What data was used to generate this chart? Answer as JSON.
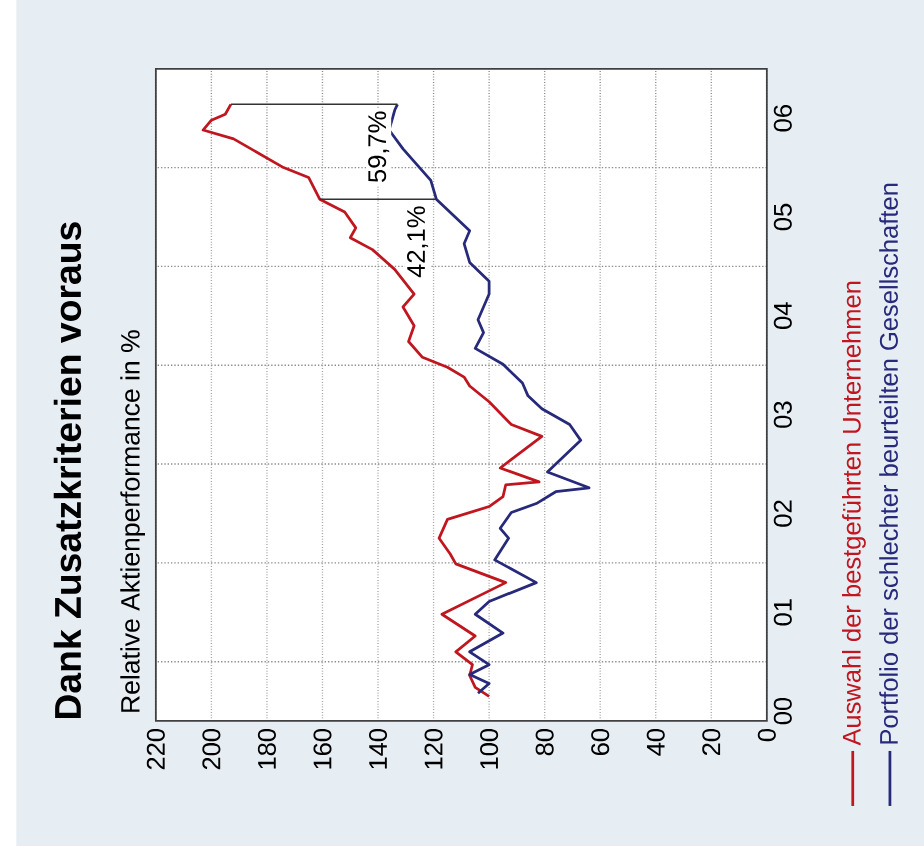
{
  "chart_data": {
    "type": "line",
    "title": "Dank Zusatzkriterien voraus",
    "subtitle": "Relative Aktienperformance in %",
    "xlim": [
      220,
      0
    ],
    "ylim": [
      -0.1,
      6.5
    ],
    "xticks": [
      0,
      20,
      40,
      60,
      80,
      100,
      120,
      140,
      160,
      180,
      200,
      220
    ],
    "yticks": [
      {
        "value": 0,
        "label": "00"
      },
      {
        "value": 1,
        "label": "01"
      },
      {
        "value": 2,
        "label": "02"
      },
      {
        "value": 3,
        "label": "03"
      },
      {
        "value": 4,
        "label": "04"
      },
      {
        "value": 5,
        "label": "05"
      },
      {
        "value": 6,
        "label": "06"
      },
      {
        "value": 0.5,
        "label": null
      },
      {
        "value": 1.5,
        "label": null
      },
      {
        "value": 2.5,
        "label": null
      },
      {
        "value": 3.5,
        "label": null
      },
      {
        "value": 4.5,
        "label": null
      },
      {
        "value": 5.5,
        "label": null
      }
    ],
    "grid": true,
    "legend": "right",
    "series": [
      {
        "name": "Auswahl der bestgeführten Unternehmen",
        "color": "#c0161f",
        "x": [
          100,
          105,
          107,
          106,
          112,
          105,
          117,
          94,
          112,
          114,
          118,
          115,
          100,
          95,
          94,
          82,
          96,
          81,
          92,
          100,
          107,
          109,
          115,
          124,
          129,
          127,
          131,
          127,
          134,
          142,
          150,
          148,
          152,
          161,
          165,
          174,
          192,
          203,
          200,
          195,
          193
        ],
        "values": [
          0.15,
          0.24,
          0.36,
          0.47,
          0.6,
          0.76,
          0.98,
          1.3,
          1.49,
          1.59,
          1.75,
          1.94,
          2.07,
          2.17,
          2.29,
          2.32,
          2.46,
          2.78,
          2.9,
          3.13,
          3.29,
          3.38,
          3.48,
          3.58,
          3.74,
          3.9,
          4.09,
          4.22,
          4.47,
          4.67,
          4.79,
          4.89,
          5.05,
          5.18,
          5.4,
          5.5,
          5.79,
          5.88,
          5.98,
          6.04,
          6.14
        ]
      },
      {
        "name": "Portfolio der schlechter beurteilten Gesellschaften",
        "color": "#27297a",
        "x": [
          104,
          100,
          107,
          100,
          107,
          95,
          105,
          100,
          83,
          98,
          93,
          96,
          92,
          83,
          76,
          64,
          79,
          67,
          71,
          81,
          86,
          88,
          95,
          105,
          102,
          104,
          100,
          100,
          107,
          109,
          107,
          113,
          119,
          121,
          131,
          136,
          134,
          133
        ],
        "values": [
          0.18,
          0.28,
          0.37,
          0.47,
          0.6,
          0.79,
          0.98,
          1.11,
          1.3,
          1.53,
          1.75,
          1.85,
          2.01,
          2.1,
          2.22,
          2.26,
          2.42,
          2.74,
          2.9,
          3.06,
          3.19,
          3.32,
          3.51,
          3.67,
          3.83,
          3.96,
          4.22,
          4.35,
          4.54,
          4.73,
          4.86,
          5.02,
          5.18,
          5.37,
          5.69,
          5.88,
          6.08,
          6.14
        ]
      }
    ],
    "annotations": [
      {
        "text": "59,7%",
        "x": 133,
        "y": 6.14
      },
      {
        "text": "42,1%",
        "x": 119,
        "y": 5.18
      }
    ]
  }
}
